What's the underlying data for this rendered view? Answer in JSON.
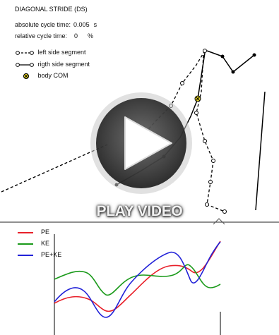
{
  "header": {
    "title": "DIAGONAL STRIDE (DS)",
    "abs_label": "absolute cycle time:",
    "abs_value": "0.005",
    "abs_unit": "s",
    "rel_label": "relative cycle time:",
    "rel_value": "0",
    "rel_unit": "%"
  },
  "legend": {
    "left": "left side segment",
    "right": "rigth side segment",
    "com": "body COM"
  },
  "overlay": {
    "play_label": "PLAY VIDEO",
    "play_icon": "play-icon"
  },
  "energy_legend": [
    {
      "name": "PE",
      "color": "#e8202a"
    },
    {
      "name": "KE",
      "color": "#1a9a1a"
    },
    {
      "name": "PE+KE",
      "color": "#2222d8"
    }
  ],
  "colors": {
    "pe": "#e8202a",
    "ke": "#1a9a1a",
    "total": "#2222d8"
  }
}
